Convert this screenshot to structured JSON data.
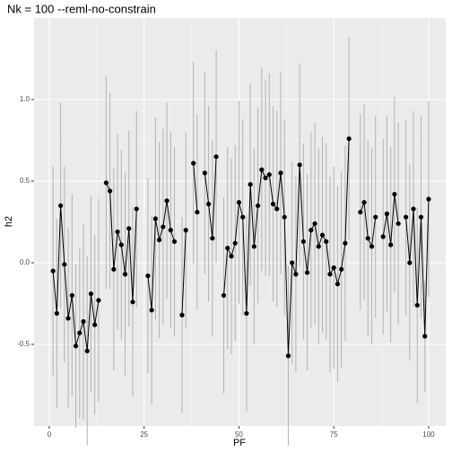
{
  "chart_data": {
    "type": "line",
    "title": "Nk = 100 --reml-no-constrain",
    "x_label": "PF",
    "y_label": "h2",
    "x": [
      1,
      2,
      3,
      4,
      5,
      6,
      7,
      8,
      9,
      10,
      11,
      12,
      13,
      14,
      15,
      16,
      17,
      18,
      19,
      20,
      21,
      22,
      23,
      24,
      25,
      26,
      27,
      28,
      29,
      30,
      31,
      32,
      33,
      34,
      35,
      36,
      37,
      38,
      39,
      40,
      41,
      42,
      43,
      44,
      45,
      46,
      47,
      48,
      49,
      50,
      51,
      52,
      53,
      54,
      55,
      56,
      57,
      58,
      59,
      60,
      61,
      62,
      63,
      64,
      65,
      66,
      67,
      68,
      69,
      70,
      71,
      72,
      73,
      74,
      75,
      76,
      77,
      78,
      79,
      80,
      81,
      82,
      83,
      84,
      85,
      86,
      87,
      88,
      89,
      90,
      91,
      92,
      93,
      94,
      95,
      96,
      97,
      98,
      99,
      100
    ],
    "series": [
      {
        "name": "h2",
        "color": "#000000",
        "error_color": "#b3b3b3",
        "values": [
          -0.05,
          -0.31,
          0.35,
          -0.01,
          -0.34,
          -0.2,
          -0.51,
          -0.43,
          -0.36,
          -0.54,
          -0.19,
          -0.38,
          -0.23,
          null,
          0.49,
          0.44,
          -0.04,
          0.19,
          0.11,
          -0.07,
          0.21,
          -0.24,
          0.33,
          null,
          null,
          -0.08,
          -0.29,
          0.27,
          0.14,
          0.22,
          0.38,
          0.2,
          0.13,
          null,
          -0.32,
          0.2,
          null,
          0.61,
          0.31,
          null,
          0.55,
          0.36,
          0.15,
          0.65,
          null,
          -0.2,
          0.09,
          0.04,
          0.12,
          0.37,
          0.28,
          -0.31,
          0.48,
          0.1,
          0.35,
          0.57,
          0.52,
          0.54,
          0.36,
          0.33,
          0.55,
          0.28,
          -0.57,
          0,
          -0.07,
          0.6,
          0.13,
          -0.06,
          0.2,
          0.24,
          0.1,
          0.17,
          0.13,
          -0.07,
          -0.03,
          -0.13,
          -0.04,
          0.12,
          0.76,
          null,
          null,
          0.31,
          0.37,
          0.15,
          0.1,
          0.28,
          null,
          0.16,
          0.3,
          0.11,
          0.42,
          0.24,
          null,
          0.28,
          0,
          0.33,
          -0.26,
          0.28,
          -0.45,
          0.39
        ],
        "errors": [
          0.64,
          0.58,
          0.63,
          0.6,
          0.55,
          0.62,
          0.5,
          0.52,
          0.6,
          0.58,
          0.6,
          0.55,
          0.62,
          null,
          0.65,
          0.6,
          0.62,
          0.6,
          0.58,
          0.62,
          0.6,
          0.58,
          0.6,
          null,
          null,
          0.6,
          0.58,
          0.62,
          0.6,
          0.6,
          0.6,
          0.6,
          0.58,
          null,
          0.6,
          0.6,
          null,
          0.62,
          0.6,
          null,
          0.62,
          0.6,
          0.6,
          0.65,
          null,
          0.6,
          0.62,
          0.6,
          0.6,
          0.62,
          0.6,
          0.6,
          0.62,
          0.6,
          0.6,
          0.62,
          0.6,
          0.62,
          0.6,
          0.6,
          0.62,
          0.6,
          0.55,
          0.62,
          0.6,
          0.62,
          0.6,
          0.6,
          0.6,
          0.62,
          0.6,
          0.6,
          0.6,
          0.6,
          0.62,
          0.6,
          0.6,
          0.6,
          0.62,
          null,
          null,
          0.6,
          0.6,
          0.6,
          0.6,
          0.62,
          null,
          0.6,
          0.6,
          0.6,
          0.6,
          0.62,
          null,
          0.6,
          0.6,
          0.6,
          0.6,
          0.62,
          0.34,
          0.6
        ]
      }
    ],
    "xlim": [
      -4,
      104.5
    ],
    "ylim": [
      -1.0,
      1.5
    ],
    "xticks": [
      0,
      25,
      50,
      75,
      100
    ],
    "yticks": [
      -0.5,
      {
        "value": 0,
        "label": "0.0"
      },
      0.5,
      {
        "value": 1,
        "label": "1.0"
      }
    ],
    "grid": true
  }
}
